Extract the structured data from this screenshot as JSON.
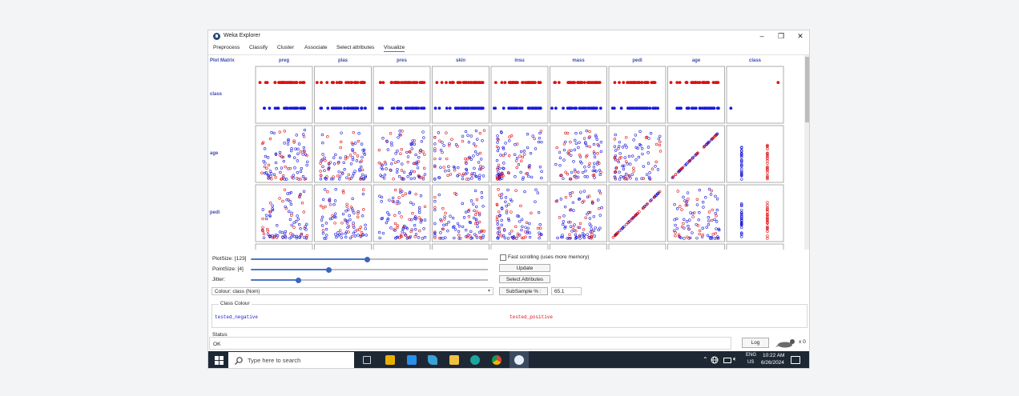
{
  "window": {
    "title": "Weka Explorer",
    "minimize": "–",
    "restore": "❐",
    "close": "✕"
  },
  "tabs": [
    "Preprocess",
    "Classify",
    "Cluster",
    "Associate",
    "Select attributes",
    "Visualize"
  ],
  "matrix": {
    "corner_label": "Plot Matrix",
    "columns": [
      "preg",
      "plas",
      "pres",
      "skin",
      "insu",
      "mass",
      "pedi",
      "age",
      "class"
    ],
    "rows": [
      "class",
      "age",
      "pedi"
    ]
  },
  "colors": {
    "negative": "#1a1adc",
    "positive": "#e01010",
    "accent": "#4a76c9"
  },
  "controls": {
    "plotsize_label": "PlotSize: [123]",
    "plotsize_value": 0.49,
    "pointsize_label": "PointSize: [4]",
    "pointsize_value": 0.33,
    "jitter_label": "Jitter:",
    "jitter_value": 0.2,
    "fast_scrolling_label": "Fast scrolling (uses more memory)",
    "update_label": "Update",
    "select_attributes_label": "Select Attributes",
    "colour_label": "Colour: class  (Nom)",
    "subsample_label": "SubSample % :",
    "subsample_value": "65.1"
  },
  "class_colour": {
    "title": "Class Colour",
    "negative": "tested_negative",
    "positive": "tested_positive"
  },
  "status": {
    "title": "Status",
    "text": "OK",
    "log_label": "Log",
    "count_label": "x 0"
  },
  "taskbar": {
    "search_placeholder": "Type here to search",
    "lang": "ENG",
    "region": "US",
    "time": "10:22 AM",
    "date": "6/26/2024"
  }
}
